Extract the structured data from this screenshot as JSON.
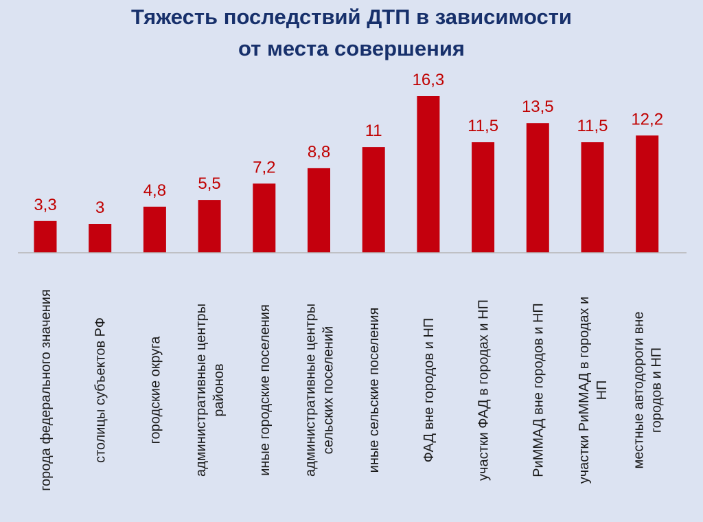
{
  "chart_data": {
    "type": "bar",
    "title_lines": [
      "Тяжесть последствий ДТП в зависимости",
      "от места совершения"
    ],
    "categories": [
      [
        "города федерального значения"
      ],
      [
        "столицы субъектов РФ"
      ],
      [
        "городские округа"
      ],
      [
        "административные центры",
        "районов"
      ],
      [
        "иные городские поселения"
      ],
      [
        "административные центры",
        "сельских поселений"
      ],
      [
        "иные сельские поселения"
      ],
      [
        "ФАД вне городов и НП"
      ],
      [
        "участки ФАД в городах и НП"
      ],
      [
        "РиММАД вне городов и НП"
      ],
      [
        "участки РиММАД в городах и",
        "НП"
      ],
      [
        "местные автодороги вне",
        "городов и НП"
      ]
    ],
    "values": [
      3.3,
      3,
      4.8,
      5.5,
      7.2,
      8.8,
      11,
      16.3,
      11.5,
      13.5,
      11.5,
      12.2
    ],
    "value_labels": [
      "3,3",
      "3",
      "4,8",
      "5,5",
      "7,2",
      "8,8",
      "11",
      "16,3",
      "11,5",
      "13,5",
      "11,5",
      "12,2"
    ],
    "ylim": [
      0,
      16.3
    ],
    "grid": false,
    "legend": "none",
    "colors": {
      "bar": "#c4000d",
      "value_label": "#c00000",
      "title": "#17306b",
      "background": "#dce3f2"
    }
  }
}
